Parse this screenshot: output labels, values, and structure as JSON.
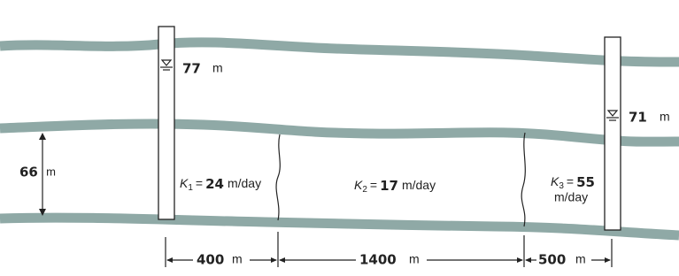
{
  "wells": [
    {
      "head": 77,
      "unit": "m"
    },
    {
      "head": 71,
      "unit": "m"
    }
  ],
  "aquifer_thickness": {
    "value": 66,
    "unit": "m"
  },
  "zones": [
    {
      "symbol": "K",
      "subscript": "1",
      "equals": "=",
      "value": 24,
      "unit": "m/day"
    },
    {
      "symbol": "K",
      "subscript": "2",
      "equals": "=",
      "value": 17,
      "unit": "m/day"
    },
    {
      "symbol": "K",
      "subscript": "3",
      "equals": "=",
      "value": 55,
      "unit": "m/day"
    }
  ],
  "distances": [
    {
      "value": 400,
      "unit": "m"
    },
    {
      "value": 1400,
      "unit": "m"
    },
    {
      "value": 500,
      "unit": "m"
    }
  ]
}
